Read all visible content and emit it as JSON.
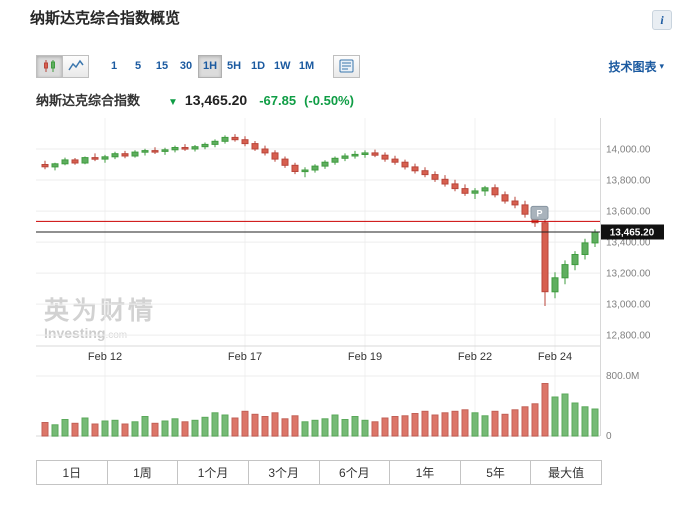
{
  "page": {
    "title": "纳斯达克综合指数概览",
    "info_glyph": "i"
  },
  "toolbar": {
    "intervals": [
      "1",
      "5",
      "15",
      "30",
      "1H",
      "5H",
      "1D",
      "1W",
      "1M"
    ],
    "active_interval": "1H",
    "technical_chart": "技术图表",
    "caret_down": "▾"
  },
  "quote": {
    "name": "纳斯达克综合指数",
    "direction_glyph": "▼",
    "price": "13,465.20",
    "change": "-67.85",
    "change_percent": "(-0.50%)"
  },
  "watermark": {
    "cn": "英为财情",
    "en": "Investing",
    "suffix": ".com"
  },
  "ranges": [
    "1日",
    "1周",
    "1个月",
    "3个月",
    "6个月",
    "1年",
    "5年",
    "最大值"
  ],
  "chart_data": {
    "type": "candlestick",
    "interval": "1H",
    "price_axis": {
      "min": 12730,
      "max": 14200,
      "ticks": [
        {
          "value": 14000,
          "label": "14,000.00"
        },
        {
          "value": 13800,
          "label": "13,800.00"
        },
        {
          "value": 13600,
          "label": "13,600.00"
        },
        {
          "value": 13400,
          "label": "13,400.00"
        },
        {
          "value": 13200,
          "label": "13,200.00"
        },
        {
          "value": 13000,
          "label": "13,000.00"
        },
        {
          "value": 12800,
          "label": "12,800.00"
        }
      ]
    },
    "volume_axis": {
      "max": 800,
      "max_label": "800.0M",
      "zero_label": "0"
    },
    "x_labels": [
      {
        "index": 6,
        "label": "Feb 12"
      },
      {
        "index": 20,
        "label": "Feb 17"
      },
      {
        "index": 32,
        "label": "Feb 19"
      },
      {
        "index": 43,
        "label": "Feb 22"
      },
      {
        "index": 51,
        "label": "Feb 24"
      }
    ],
    "prev_close": 13533.05,
    "last_price": 13465.2,
    "last_price_label": "13,465.20",
    "event_marker": {
      "index": 50,
      "label": "P"
    },
    "colors": {
      "up": "#3f9c3f",
      "up_fill": "#5fae5f",
      "down": "#b9453a",
      "down_fill": "#d75f4f",
      "prev_close_line": "#cc0000",
      "last_price_line": "#222222",
      "grid": "#ededed",
      "axis": "#d8d8d8",
      "session": "#f0f0f0"
    },
    "candles": [
      [
        13900,
        13925,
        13870,
        13885,
        180
      ],
      [
        13885,
        13912,
        13862,
        13905,
        150
      ],
      [
        13905,
        13945,
        13895,
        13930,
        220
      ],
      [
        13930,
        13942,
        13898,
        13910,
        170
      ],
      [
        13910,
        13952,
        13902,
        13945,
        240
      ],
      [
        13945,
        13972,
        13922,
        13935,
        160
      ],
      [
        13935,
        13962,
        13912,
        13950,
        200
      ],
      [
        13950,
        13982,
        13935,
        13970,
        210
      ],
      [
        13970,
        13988,
        13940,
        13955,
        160
      ],
      [
        13955,
        13992,
        13945,
        13980,
        190
      ],
      [
        13980,
        14002,
        13958,
        13990,
        260
      ],
      [
        13990,
        14012,
        13968,
        13985,
        170
      ],
      [
        13985,
        14008,
        13962,
        13995,
        200
      ],
      [
        13995,
        14022,
        13978,
        14010,
        230
      ],
      [
        14010,
        14032,
        13988,
        14000,
        190
      ],
      [
        14000,
        14026,
        13984,
        14015,
        210
      ],
      [
        14015,
        14042,
        13998,
        14030,
        250
      ],
      [
        14030,
        14062,
        14012,
        14050,
        310
      ],
      [
        14050,
        14088,
        14035,
        14075,
        280
      ],
      [
        14075,
        14096,
        14048,
        14060,
        240
      ],
      [
        14060,
        14082,
        14018,
        14035,
        330
      ],
      [
        14035,
        14052,
        13988,
        14000,
        290
      ],
      [
        14000,
        14022,
        13958,
        13975,
        260
      ],
      [
        13975,
        13992,
        13918,
        13935,
        310
      ],
      [
        13935,
        13952,
        13878,
        13895,
        230
      ],
      [
        13895,
        13912,
        13838,
        13855,
        270
      ],
      [
        13855,
        13882,
        13818,
        13865,
        190
      ],
      [
        13865,
        13902,
        13848,
        13890,
        210
      ],
      [
        13890,
        13928,
        13872,
        13915,
        230
      ],
      [
        13915,
        13952,
        13898,
        13940,
        280
      ],
      [
        13940,
        13972,
        13922,
        13955,
        220
      ],
      [
        13955,
        13988,
        13938,
        13965,
        260
      ],
      [
        13965,
        13992,
        13944,
        13975,
        210
      ],
      [
        13975,
        13996,
        13948,
        13960,
        190
      ],
      [
        13960,
        13978,
        13918,
        13935,
        240
      ],
      [
        13935,
        13956,
        13898,
        13915,
        260
      ],
      [
        13915,
        13932,
        13868,
        13885,
        270
      ],
      [
        13885,
        13906,
        13842,
        13860,
        300
      ],
      [
        13860,
        13882,
        13818,
        13835,
        330
      ],
      [
        13835,
        13856,
        13788,
        13805,
        280
      ],
      [
        13805,
        13832,
        13758,
        13775,
        310
      ],
      [
        13775,
        13802,
        13728,
        13745,
        330
      ],
      [
        13745,
        13772,
        13698,
        13715,
        350
      ],
      [
        13715,
        13748,
        13678,
        13730,
        310
      ],
      [
        13730,
        13762,
        13698,
        13750,
        270
      ],
      [
        13750,
        13772,
        13688,
        13705,
        330
      ],
      [
        13705,
        13726,
        13648,
        13665,
        290
      ],
      [
        13665,
        13692,
        13618,
        13640,
        350
      ],
      [
        13640,
        13666,
        13558,
        13580,
        390
      ],
      [
        13580,
        13612,
        13498,
        13525,
        430
      ],
      [
        13525,
        13548,
        12988,
        13080,
        700
      ],
      [
        13080,
        13205,
        13038,
        13170,
        520
      ],
      [
        13170,
        13282,
        13128,
        13255,
        560
      ],
      [
        13255,
        13342,
        13218,
        13320,
        440
      ],
      [
        13320,
        13422,
        13288,
        13395,
        390
      ],
      [
        13395,
        13482,
        13368,
        13465.2,
        360
      ]
    ]
  }
}
